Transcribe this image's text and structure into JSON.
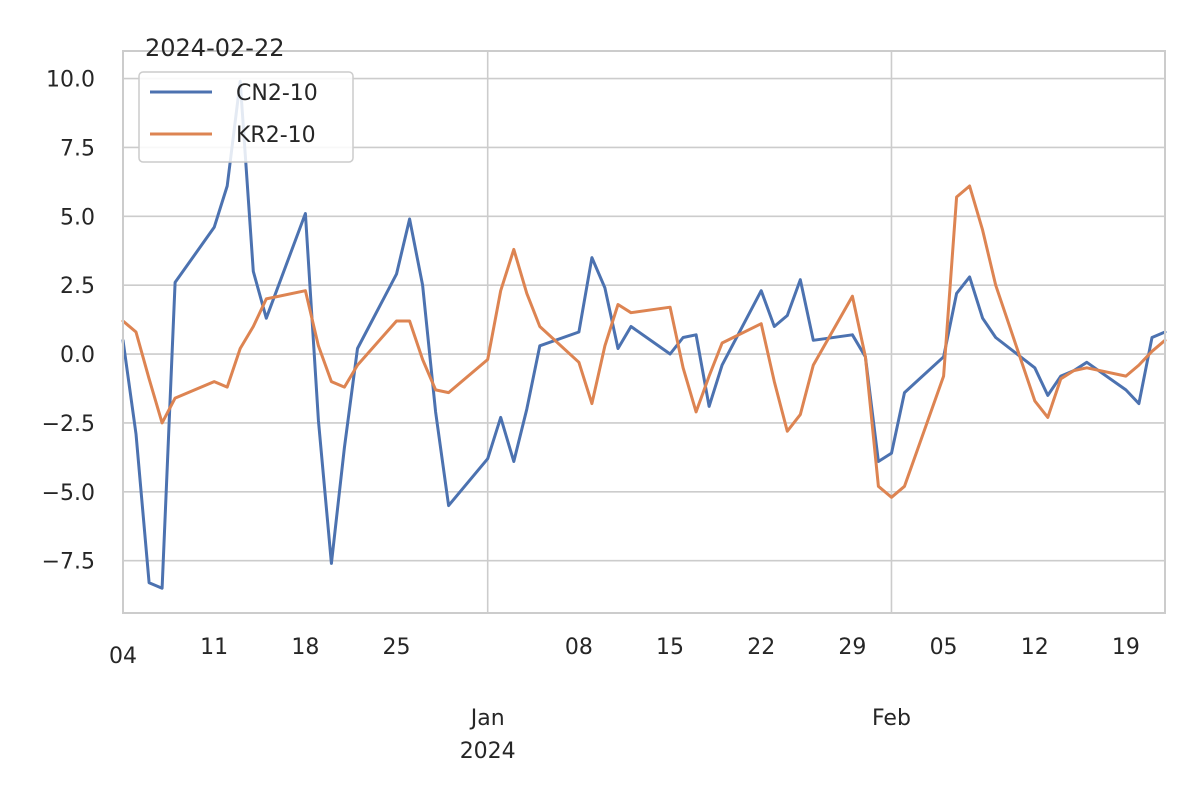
{
  "chart_data": {
    "type": "line",
    "title": "2024-02-22",
    "xlabel": "",
    "ylabel": "",
    "xlim": [
      "2023-12-04",
      "2024-02-22"
    ],
    "ylim": [
      -9.4,
      11.0
    ],
    "grid": true,
    "legend": "top-left",
    "y_ticks": [
      {
        "value": 10.0,
        "label": "10.0"
      },
      {
        "value": 7.5,
        "label": "7.5"
      },
      {
        "value": 5.0,
        "label": "5.0"
      },
      {
        "value": 2.5,
        "label": "2.5"
      },
      {
        "value": 0.0,
        "label": "0.0"
      },
      {
        "value": -2.5,
        "label": "−2.5"
      },
      {
        "value": -5.0,
        "label": "−5.0"
      },
      {
        "value": -7.5,
        "label": "−7.5"
      }
    ],
    "x_minor_ticks": [
      {
        "date": "2023-12-04",
        "label": "04"
      },
      {
        "date": "2023-12-11",
        "label": "11"
      },
      {
        "date": "2023-12-18",
        "label": "18"
      },
      {
        "date": "2023-12-25",
        "label": "25"
      },
      {
        "date": "2024-01-08",
        "label": "08"
      },
      {
        "date": "2024-01-15",
        "label": "15"
      },
      {
        "date": "2024-01-22",
        "label": "22"
      },
      {
        "date": "2024-01-29",
        "label": "29"
      },
      {
        "date": "2024-02-05",
        "label": "05"
      },
      {
        "date": "2024-02-12",
        "label": "12"
      },
      {
        "date": "2024-02-19",
        "label": "19"
      }
    ],
    "x_major_ticks": [
      {
        "date": "2024-01-01",
        "label": "Jan",
        "sublabel": "2024"
      },
      {
        "date": "2024-02-01",
        "label": "Feb",
        "sublabel": ""
      }
    ],
    "x": [
      "2023-12-04",
      "2023-12-05",
      "2023-12-06",
      "2023-12-07",
      "2023-12-08",
      "2023-12-11",
      "2023-12-12",
      "2023-12-13",
      "2023-12-14",
      "2023-12-15",
      "2023-12-18",
      "2023-12-19",
      "2023-12-20",
      "2023-12-21",
      "2023-12-22",
      "2023-12-25",
      "2023-12-26",
      "2023-12-27",
      "2023-12-28",
      "2023-12-29",
      "2024-01-01",
      "2024-01-02",
      "2024-01-03",
      "2024-01-04",
      "2024-01-05",
      "2024-01-08",
      "2024-01-09",
      "2024-01-10",
      "2024-01-11",
      "2024-01-12",
      "2024-01-15",
      "2024-01-16",
      "2024-01-17",
      "2024-01-18",
      "2024-01-19",
      "2024-01-22",
      "2024-01-23",
      "2024-01-24",
      "2024-01-25",
      "2024-01-26",
      "2024-01-29",
      "2024-01-30",
      "2024-01-31",
      "2024-02-01",
      "2024-02-02",
      "2024-02-05",
      "2024-02-06",
      "2024-02-07",
      "2024-02-08",
      "2024-02-09",
      "2024-02-12",
      "2024-02-13",
      "2024-02-14",
      "2024-02-15",
      "2024-02-16",
      "2024-02-19",
      "2024-02-20",
      "2024-02-21",
      "2024-02-22"
    ],
    "series": [
      {
        "name": "CN2-10",
        "color": "#4c72b0",
        "values": [
          0.5,
          -2.9,
          -8.3,
          -8.5,
          2.6,
          4.6,
          6.1,
          9.9,
          3.0,
          1.3,
          5.1,
          -2.4,
          -7.6,
          -3.4,
          0.2,
          2.9,
          4.9,
          2.5,
          -2.1,
          -5.5,
          -3.8,
          -2.3,
          -3.9,
          -2.0,
          0.3,
          0.8,
          3.5,
          2.4,
          0.2,
          1.0,
          0.0,
          0.6,
          0.7,
          -1.9,
          -0.4,
          2.3,
          1.0,
          1.4,
          2.7,
          0.5,
          0.7,
          -0.1,
          -3.9,
          -3.6,
          -1.4,
          -0.1,
          2.2,
          2.8,
          1.3,
          0.6,
          -0.5,
          -1.5,
          -0.8,
          -0.6,
          -0.3,
          -1.3,
          -1.8,
          0.6,
          0.8
        ]
      },
      {
        "name": "KR2-10",
        "color": "#dd8452",
        "values": [
          1.2,
          0.8,
          -0.9,
          -2.5,
          -1.6,
          -1.0,
          -1.2,
          0.2,
          1.0,
          2.0,
          2.3,
          0.3,
          -1.0,
          -1.2,
          -0.4,
          1.2,
          1.2,
          -0.2,
          -1.3,
          -1.4,
          -0.2,
          2.3,
          3.8,
          2.2,
          1.0,
          -0.3,
          -1.8,
          0.3,
          1.8,
          1.5,
          1.7,
          -0.5,
          -2.1,
          -0.8,
          0.4,
          1.1,
          -1.0,
          -2.8,
          -2.2,
          -0.4,
          2.1,
          -0.1,
          -4.8,
          -5.2,
          -4.8,
          -0.8,
          5.7,
          6.1,
          4.5,
          2.5,
          -1.7,
          -2.3,
          -0.9,
          -0.6,
          -0.5,
          -0.8,
          -0.4,
          0.1,
          0.5
        ]
      }
    ]
  }
}
